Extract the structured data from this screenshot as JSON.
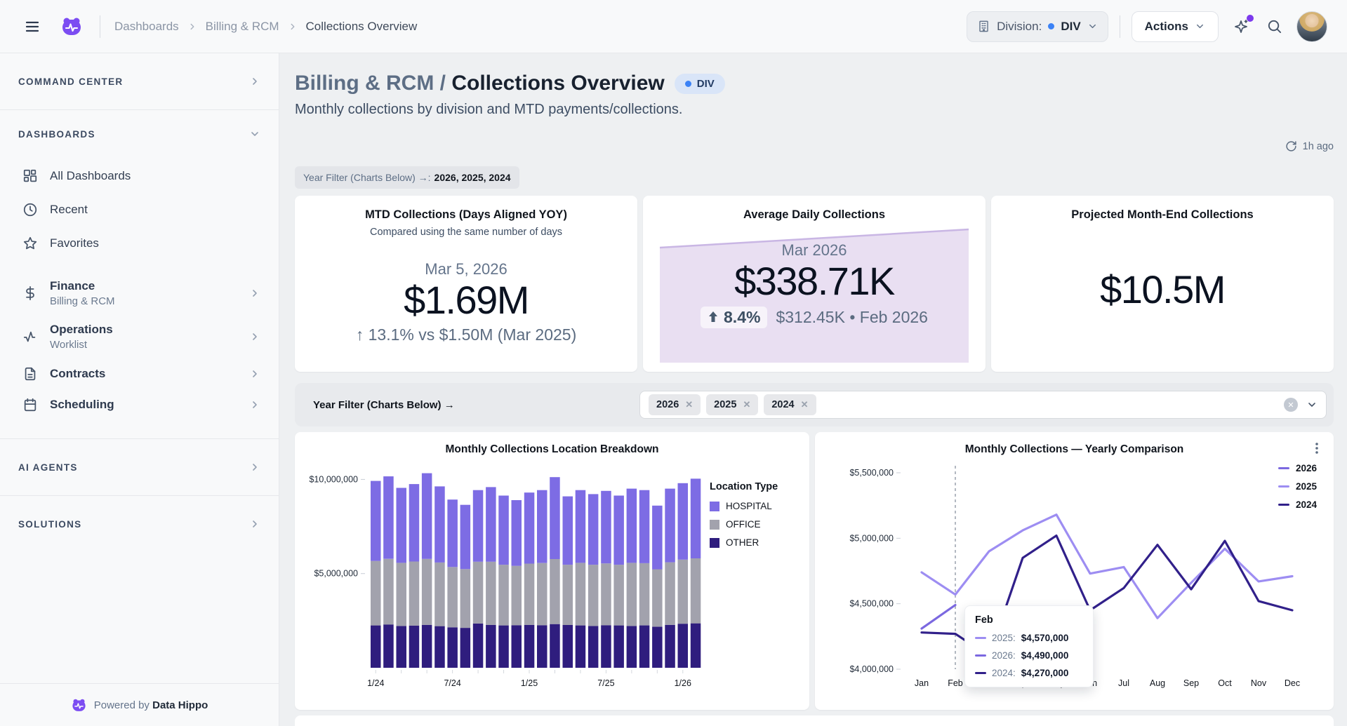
{
  "header": {
    "breadcrumbs": [
      "Dashboards",
      "Billing & RCM",
      "Collections Overview"
    ],
    "division_label": "Division:",
    "division_value": "DIV",
    "actions_label": "Actions"
  },
  "sidebar": {
    "command_center": "COMMAND CENTER",
    "dashboards_label": "DASHBOARDS",
    "dashboard_items": [
      {
        "label": "All Dashboards"
      },
      {
        "label": "Recent"
      },
      {
        "label": "Favorites"
      }
    ],
    "modules": [
      {
        "label": "Finance",
        "sublabel": "Billing & RCM"
      },
      {
        "label": "Operations",
        "sublabel": "Worklist"
      },
      {
        "label": "Contracts",
        "sublabel": ""
      },
      {
        "label": "Scheduling",
        "sublabel": ""
      }
    ],
    "ai_agents": "AI AGENTS",
    "solutions": "SOLUTIONS",
    "footer_prefix": "Powered by",
    "footer_brand": "Data Hippo"
  },
  "page": {
    "title_prefix": "Billing & RCM /",
    "title": "Collections Overview",
    "badge": "DIV",
    "subtitle": "Monthly collections by division and MTD payments/collections.",
    "refreshed": "1h ago",
    "filter_summary_label": "Year Filter (Charts Below) →:",
    "filter_summary_years": "2026, 2025, 2024"
  },
  "kpis": [
    {
      "title": "MTD Collections (Days Aligned YOY)",
      "subtitle": "Compared using the same number of days",
      "period": "Mar 5, 2026",
      "value": "$1.69M",
      "delta": "↑ 13.1% vs $1.50M (Mar 2025)"
    },
    {
      "title": "Average Daily Collections",
      "period": "Mar 2026",
      "value": "$338.71K",
      "delta_pct": "8.4%",
      "delta_context": "$312.45K • Feb 2026"
    },
    {
      "title": "Projected Month-End Collections",
      "value": "$10.5M"
    }
  ],
  "year_filter": {
    "label": "Year Filter (Charts Below) →",
    "chips": [
      "2026",
      "2025",
      "2024"
    ]
  },
  "colors": {
    "brand_purple": "#7c4df2",
    "accent_blue": "#3b82f6",
    "notification_purple": "#7c3aed"
  },
  "chart_data": [
    {
      "type": "bar",
      "stacked": true,
      "title": "Monthly Collections Location Breakdown",
      "legend_title": "Location Type",
      "categories": [
        "1/24",
        "2/24",
        "3/24",
        "4/24",
        "5/24",
        "6/24",
        "7/24",
        "8/24",
        "9/24",
        "10/24",
        "11/24",
        "12/24",
        "1/25",
        "2/25",
        "3/25",
        "4/25",
        "5/25",
        "6/25",
        "7/25",
        "8/25",
        "9/25",
        "10/25",
        "11/25",
        "12/25",
        "1/26",
        "2/26"
      ],
      "x_tick_labels": [
        "1/24",
        "7/24",
        "1/25",
        "7/25",
        "1/26"
      ],
      "x_tick_indices": [
        0,
        6,
        12,
        18,
        24
      ],
      "series": [
        {
          "name": "OTHER",
          "color": "#2f1d7e",
          "values": [
            2250000,
            2300000,
            2220000,
            2240000,
            2280000,
            2210000,
            2150000,
            2120000,
            2350000,
            2280000,
            2250000,
            2260000,
            2280000,
            2260000,
            2320000,
            2270000,
            2250000,
            2220000,
            2260000,
            2250000,
            2220000,
            2250000,
            2180000,
            2280000,
            2340000,
            2360000
          ]
        },
        {
          "name": "OFFICE",
          "color": "#a2a2ad",
          "values": [
            3420000,
            3480000,
            3350000,
            3400000,
            3500000,
            3380000,
            3200000,
            3120000,
            3280000,
            3350000,
            3220000,
            3150000,
            3250000,
            3300000,
            3450000,
            3200000,
            3320000,
            3250000,
            3280000,
            3220000,
            3350000,
            3300000,
            3050000,
            3320000,
            3400000,
            3450000
          ]
        },
        {
          "name": "HOSPITAL",
          "color": "#7d6ce4",
          "values": [
            4250000,
            4380000,
            3980000,
            4110000,
            4550000,
            4040000,
            3580000,
            3410000,
            3800000,
            3960000,
            3670000,
            3490000,
            3770000,
            3870000,
            4350000,
            3630000,
            3860000,
            3750000,
            3850000,
            3670000,
            3940000,
            3880000,
            3380000,
            3910000,
            4060000,
            4230000
          ]
        }
      ],
      "legend": [
        {
          "label": "HOSPITAL",
          "color": "#7d6ce4"
        },
        {
          "label": "OFFICE",
          "color": "#a2a2ad"
        },
        {
          "label": "OTHER",
          "color": "#2f1d7e"
        }
      ],
      "y_ticks": [
        5000000,
        10000000
      ],
      "y_tick_labels": [
        "$5,000,000",
        "$10,000,000"
      ],
      "ylim": [
        0,
        10500000
      ],
      "grid": false,
      "legend_position": "right"
    },
    {
      "type": "line",
      "title": "Monthly Collections — Yearly Comparison",
      "x": [
        "Jan",
        "Feb",
        "Mar",
        "Apr",
        "May",
        "Jun",
        "Jul",
        "Aug",
        "Sep",
        "Oct",
        "Nov",
        "Dec"
      ],
      "series": [
        {
          "name": "2026",
          "color": "#7b68e0",
          "values": [
            4310000,
            4490000
          ]
        },
        {
          "name": "2025",
          "color": "#9d8df2",
          "values": [
            4740000,
            4570000,
            4900000,
            5060000,
            5180000,
            4730000,
            4780000,
            4390000,
            4660000,
            4920000,
            4670000,
            4710000
          ]
        },
        {
          "name": "2024",
          "color": "#31208a",
          "values": [
            4280000,
            4270000,
            4100000,
            4850000,
            5020000,
            4450000,
            4620000,
            4950000,
            4610000,
            4980000,
            4520000,
            4450000
          ]
        }
      ],
      "y_ticks": [
        4000000,
        4500000,
        5000000,
        5500000
      ],
      "y_tick_labels": [
        "$4,000,000",
        "$4,500,000",
        "$5,000,000",
        "$5,500,000"
      ],
      "ylim": [
        4000000,
        5500000
      ],
      "grid": false,
      "legend_position": "top-right",
      "marker_month": "Feb",
      "tooltip": {
        "title": "Feb",
        "rows": [
          {
            "label": "2025:",
            "value": "$4,570,000",
            "color": "#9d8df2"
          },
          {
            "label": "2026:",
            "value": "$4,490,000",
            "color": "#7b68e0"
          },
          {
            "label": "2024:",
            "value": "$4,270,000",
            "color": "#31208a"
          }
        ]
      }
    }
  ]
}
